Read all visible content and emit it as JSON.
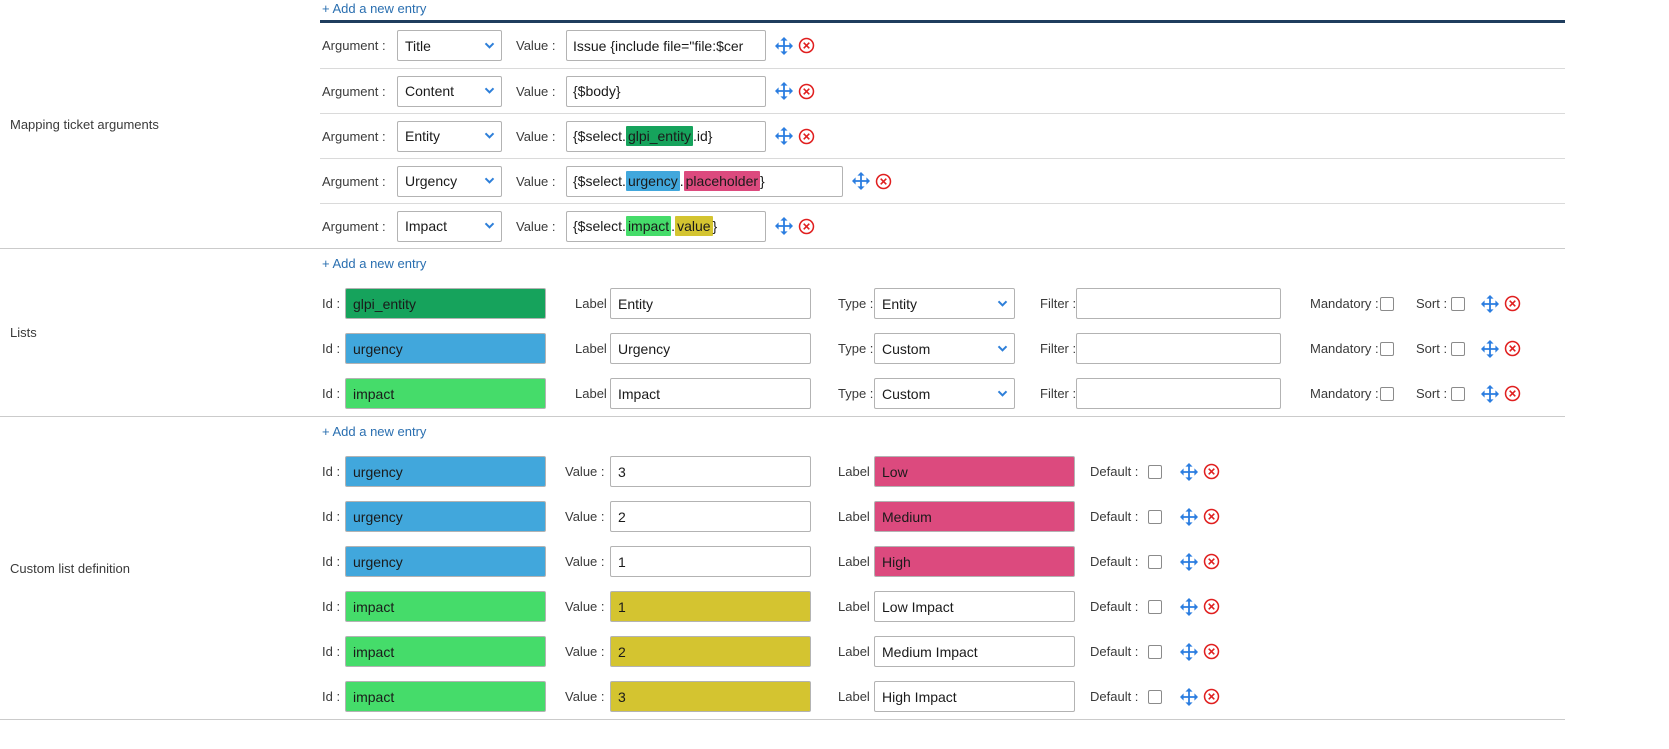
{
  "colors": {
    "green_dark": "#16a35c",
    "green_light": "#45dc6a",
    "blue": "#41a7dc",
    "pink": "#dc4a7e",
    "yellow": "#d4c430",
    "link": "#2a6fb0",
    "topline": "#1f3d5e",
    "move": "#2b7de0",
    "delete": "#e01f1f",
    "chevron": "#2e7fd9"
  },
  "icons": {
    "move": "four-arrow-move",
    "delete": "circle-x",
    "select_chevron": "chevron-down"
  },
  "labels": {
    "argument": "Argument :",
    "value": "Value :",
    "id": "Id :",
    "label": "Label :",
    "type": "Type :",
    "filter": "Filter :",
    "mandatory": "Mandatory :",
    "sort": "Sort :",
    "default": "Default :",
    "add_entry": "+ Add a new entry"
  },
  "sections": {
    "mapping": {
      "title": "Mapping ticket arguments",
      "rows": [
        {
          "argument": "Title",
          "wide": false,
          "value_parts": [
            {
              "text": "Issue {include file=\"file:$cer"
            }
          ]
        },
        {
          "argument": "Content",
          "wide": false,
          "value_parts": [
            {
              "text": "{$body}"
            }
          ]
        },
        {
          "argument": "Entity",
          "wide": false,
          "value_parts": [
            {
              "text": "{$select."
            },
            {
              "text": "glpi_entity",
              "hl": "green_dark"
            },
            {
              "text": ".id}"
            }
          ]
        },
        {
          "argument": "Urgency",
          "wide": true,
          "value_parts": [
            {
              "text": "{$select."
            },
            {
              "text": "urgency",
              "hl": "blue"
            },
            {
              "text": "."
            },
            {
              "text": "placeholder",
              "hl": "pink"
            },
            {
              "text": "}"
            }
          ]
        },
        {
          "argument": "Impact",
          "wide": false,
          "value_parts": [
            {
              "text": "{$select."
            },
            {
              "text": "impact",
              "hl": "green_light"
            },
            {
              "text": "."
            },
            {
              "text": "value",
              "hl": "yellow"
            },
            {
              "text": "}"
            }
          ]
        }
      ]
    },
    "lists": {
      "title": "Lists",
      "rows": [
        {
          "id": "glpi_entity",
          "id_hl": "green_dark",
          "label": "Entity",
          "type": "Entity",
          "filter": "",
          "mandatory": false,
          "sort": false
        },
        {
          "id": "urgency",
          "id_hl": "blue",
          "label": "Urgency",
          "type": "Custom",
          "filter": "",
          "mandatory": false,
          "sort": false
        },
        {
          "id": "impact",
          "id_hl": "green_light",
          "label": "Impact",
          "type": "Custom",
          "filter": "",
          "mandatory": false,
          "sort": false
        }
      ]
    },
    "custom": {
      "title": "Custom list definition",
      "rows": [
        {
          "id": "urgency",
          "id_hl": "blue",
          "value": "3",
          "value_hl": null,
          "label": "Low",
          "label_hl": "pink",
          "default": false
        },
        {
          "id": "urgency",
          "id_hl": "blue",
          "value": "2",
          "value_hl": null,
          "label": "Medium",
          "label_hl": "pink",
          "default": false
        },
        {
          "id": "urgency",
          "id_hl": "blue",
          "value": "1",
          "value_hl": null,
          "label": "High",
          "label_hl": "pink",
          "default": false
        },
        {
          "id": "impact",
          "id_hl": "green_light",
          "value": "1",
          "value_hl": "yellow",
          "label": "Low Impact",
          "label_hl": null,
          "default": false
        },
        {
          "id": "impact",
          "id_hl": "green_light",
          "value": "2",
          "value_hl": "yellow",
          "label": "Medium Impact",
          "label_hl": null,
          "default": false
        },
        {
          "id": "impact",
          "id_hl": "green_light",
          "value": "3",
          "value_hl": "yellow",
          "label": "High Impact",
          "label_hl": null,
          "default": false
        }
      ]
    }
  }
}
